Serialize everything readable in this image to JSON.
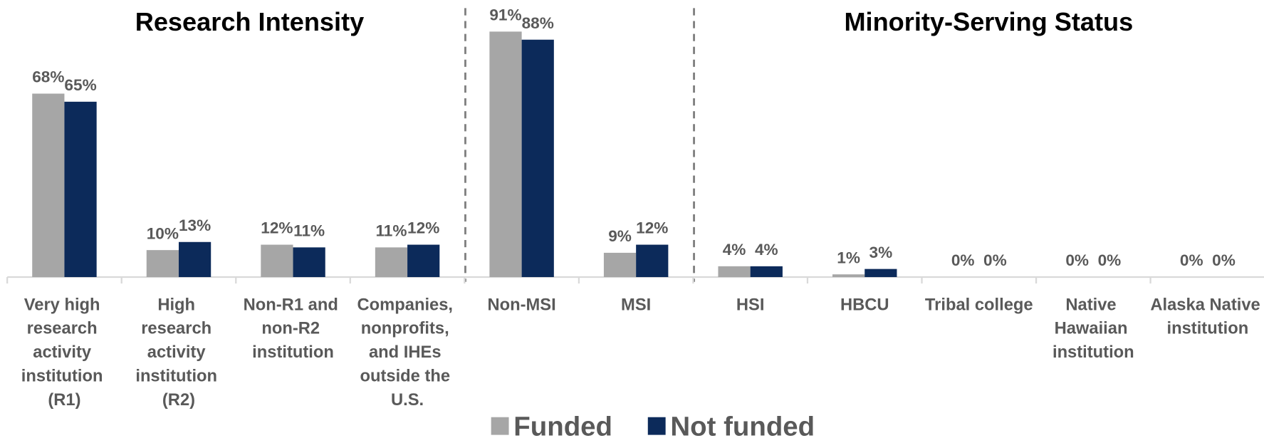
{
  "chart_data": {
    "type": "bar",
    "annotations": [
      "Research Intensity",
      "Minority-Serving Status"
    ],
    "categories": [
      "Very high\nresearch\nactivity\ninstitution\n(R1)",
      "High\nresearch\nactivity\ninstitution\n(R2)",
      "Non-R1 and\nnon-R2\ninstitution",
      "Companies,\nnonprofits,\nand IHEs\noutside the\nU.S.",
      "Non-MSI",
      "MSI",
      "HSI",
      "HBCU",
      "Tribal college",
      "Native\nHawaiian\ninstitution",
      "Alaska Native\ninstitution"
    ],
    "series": [
      {
        "name": "Funded",
        "color": "#a6a6a6",
        "values": [
          68,
          10,
          12,
          11,
          91,
          9,
          4,
          1,
          0,
          0,
          0
        ],
        "value_labels": [
          "68%",
          "10%",
          "12%",
          "11%",
          "91%",
          "9%",
          "4%",
          "1%",
          "0%",
          "0%",
          "0%"
        ]
      },
      {
        "name": "Not funded",
        "color": "#0c2a5a",
        "values": [
          65,
          13,
          11,
          12,
          88,
          12,
          4,
          3,
          0,
          0,
          0
        ],
        "value_labels": [
          "65%",
          "13%",
          "11%",
          "12%",
          "88%",
          "12%",
          "4%",
          "3%",
          "0%",
          "0%",
          "0%"
        ]
      }
    ],
    "ylim": [
      0,
      100
    ],
    "grid": false,
    "legend": "bottom"
  }
}
